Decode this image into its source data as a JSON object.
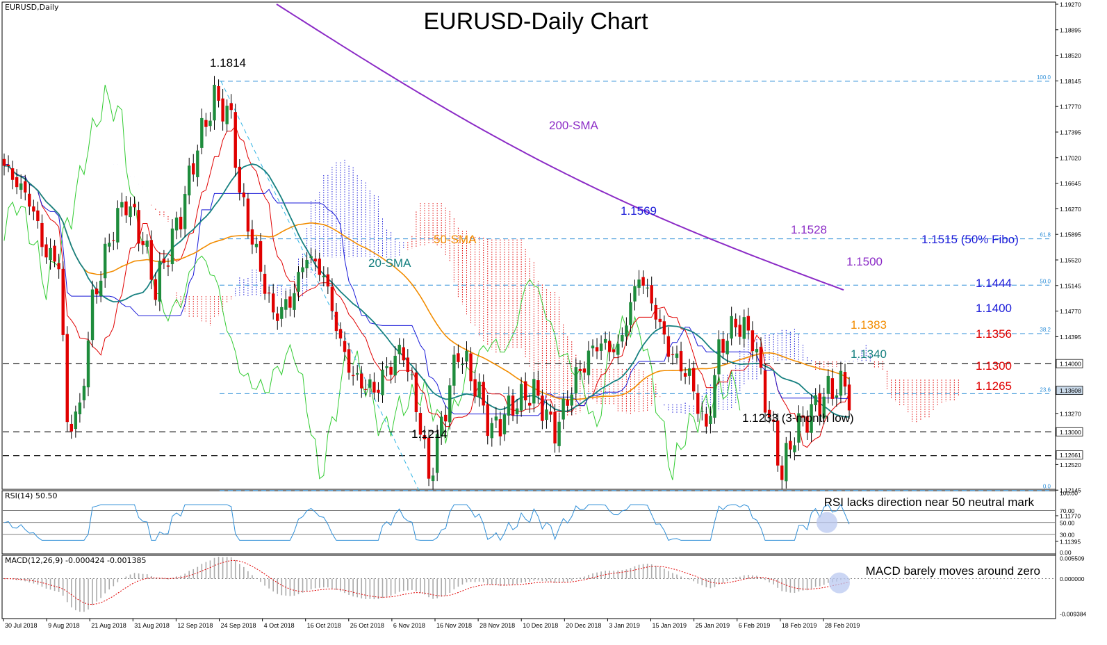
{
  "chart_data": [
    {
      "type": "candlestick",
      "symbol_label": "EURUSD,Daily",
      "title": "EURUSD-Daily Chart",
      "ylim": [
        1.112,
        1.1927
      ],
      "price_ticks": [
        "1.19270",
        "1.18895",
        "1.18520",
        "1.18145",
        "1.17770",
        "1.17395",
        "1.17020",
        "1.16645",
        "1.16270",
        "1.15895",
        "1.15520",
        "1.15145",
        "1.14770",
        "1.14395",
        "1.14000",
        "1.13608",
        "1.13270",
        "1.13000",
        "1.12661",
        "1.12520",
        "1.12145",
        "1.11770",
        "1.11395"
      ],
      "highlighted_ticks": [
        "1.14000",
        "1.13608",
        "1.13000",
        "1.12661"
      ],
      "x_tick_labels": [
        "30 Jul 2018",
        "9 Aug 2018",
        "21 Aug 2018",
        "31 Aug 2018",
        "12 Sep 2018",
        "24 Sep 2018",
        "4 Oct 2018",
        "16 Oct 2018",
        "26 Oct 2018",
        "6 Nov 2018",
        "16 Nov 2018",
        "28 Nov 2018",
        "10 Dec 2018",
        "20 Dec 2018",
        "3 Jan 2019",
        "15 Jan 2019",
        "25 Jan 2019",
        "6 Feb 2019",
        "18 Feb 2019",
        "28 Feb 2019"
      ],
      "fibonacci": [
        {
          "level": "100.0",
          "price": 1.1814
        },
        {
          "level": "61.8",
          "price": 1.1583
        },
        {
          "level": "50.0",
          "price": 1.1515
        },
        {
          "level": "38.2",
          "price": 1.1444
        },
        {
          "level": "23.6",
          "price": 1.1356
        },
        {
          "level": "0.0",
          "price": 1.1214
        }
      ],
      "support_resistance": [
        1.14,
        1.13,
        1.1265
      ],
      "annotations": [
        {
          "text": "1.1814",
          "color": "#000000"
        },
        {
          "text": "1.1569",
          "color": "#1a1ad8"
        },
        {
          "text": "1.1214",
          "color": "#000000"
        },
        {
          "text": "1.1233 (3-month low)",
          "color": "#000000"
        },
        {
          "text": "200-SMA",
          "color": "#8b2bc6"
        },
        {
          "text": "50-SMA",
          "color": "#f28c00"
        },
        {
          "text": "20-SMA",
          "color": "#168080"
        },
        {
          "text": "1.1528",
          "color": "#8b2bc6"
        },
        {
          "text": "1.1500",
          "color": "#8b2bc6"
        },
        {
          "text": "1.1515 (50% Fibo)",
          "color": "#1a1ad8"
        },
        {
          "text": "1.1444",
          "color": "#1a1ad8"
        },
        {
          "text": "1.1400",
          "color": "#1a1ad8"
        },
        {
          "text": "1.1383",
          "color": "#f28c00"
        },
        {
          "text": "1.1356",
          "color": "#e00000"
        },
        {
          "text": "1.1340",
          "color": "#168080"
        },
        {
          "text": "1.1300",
          "color": "#e00000"
        },
        {
          "text": "1.1265",
          "color": "#e00000"
        }
      ],
      "series": [
        {
          "name": "200-SMA",
          "color": "#8b2bc6"
        },
        {
          "name": "50-SMA",
          "color": "#f28c00"
        },
        {
          "name": "20-SMA",
          "color": "#168080"
        }
      ],
      "colors": {
        "bull": "#1e8c3c",
        "bear": "#e00000",
        "kumo_bull": "#1a1ad8",
        "kumo_bear": "#e00000",
        "chikou": "#33cc33",
        "fibo": "#2f8fd8"
      }
    },
    {
      "type": "line",
      "label": "RSI(14) 50.50",
      "ylim": [
        0,
        100
      ],
      "ticks": [
        "100.00",
        "70.00",
        "50.00",
        "30.00",
        "0.00"
      ],
      "levels": [
        70,
        50,
        30
      ],
      "annotation": "RSI lacks direction near 50 neutral mark",
      "color": "#2f8fd8"
    },
    {
      "type": "bar",
      "label": "MACD(12,26,9) -0.000424 -0.001385",
      "ylim": [
        -0.009384,
        0.005509
      ],
      "ticks": [
        "0.005509",
        "0.000000",
        "-0.009384"
      ],
      "annotation": "MACD barely moves around zero",
      "color": "#aaaaaa",
      "signal_color": "#e00000"
    }
  ]
}
